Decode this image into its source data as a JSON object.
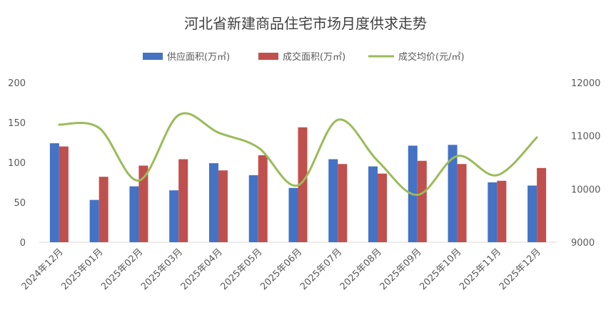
{
  "chart_data": {
    "type": "bar",
    "title": "河北省新建商品住宅市场月度供求走势",
    "categories": [
      "2024年12月",
      "2025年01月",
      "2025年02月",
      "2025年03月",
      "2025年04月",
      "2025年05月",
      "2025年06月",
      "2025年07月",
      "2025年08月",
      "2025年09月",
      "2025年10月",
      "2025年11月",
      "2025年12月"
    ],
    "series": [
      {
        "name": "供应面积(万㎡)",
        "type": "bar",
        "axis": "left",
        "color": "#4472C4",
        "values": [
          124,
          53,
          70,
          65,
          99,
          84,
          68,
          104,
          95,
          121,
          122,
          75,
          71
        ]
      },
      {
        "name": "成交面积(万㎡)",
        "type": "bar",
        "axis": "left",
        "color": "#C0504D",
        "values": [
          120,
          82,
          96,
          104,
          90,
          109,
          144,
          98,
          86,
          102,
          98,
          77,
          93
        ]
      },
      {
        "name": "成交均价(元/㎡)",
        "type": "line",
        "axis": "right",
        "color": "#9BBB59",
        "values": [
          11210,
          11150,
          10160,
          11390,
          11060,
          10780,
          10070,
          11300,
          10530,
          9890,
          10620,
          10260,
          10970
        ]
      }
    ],
    "y_left": {
      "min": 0,
      "max": 200,
      "ticks": [
        0,
        50,
        100,
        150,
        200
      ]
    },
    "y_right": {
      "min": 9000,
      "max": 12000,
      "ticks": [
        9000,
        10000,
        11000,
        12000
      ]
    },
    "legend_position": "top",
    "grid": false
  }
}
